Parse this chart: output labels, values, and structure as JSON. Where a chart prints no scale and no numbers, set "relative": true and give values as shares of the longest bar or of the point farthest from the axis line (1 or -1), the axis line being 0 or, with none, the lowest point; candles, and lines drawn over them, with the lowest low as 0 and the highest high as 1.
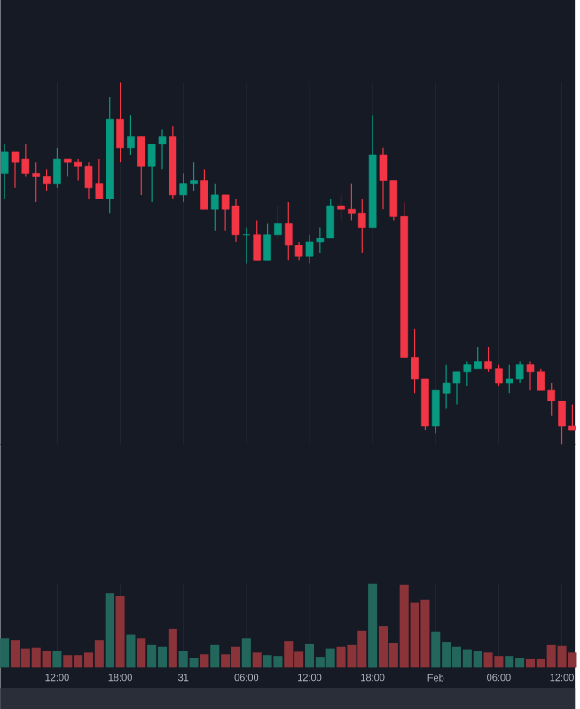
{
  "chart_data": [
    {
      "type": "candlestick",
      "relative": true,
      "grid": "x",
      "categories": [
        null,
        null,
        null,
        null,
        null,
        "12:00",
        null,
        null,
        null,
        null,
        null,
        "18:00",
        null,
        null,
        null,
        null,
        null,
        "31",
        null,
        null,
        null,
        null,
        null,
        "06:00",
        null,
        null,
        null,
        null,
        null,
        "12:00",
        null,
        null,
        null,
        null,
        null,
        "18:00",
        null,
        null,
        null,
        null,
        null,
        "Feb",
        null,
        null,
        null,
        null,
        null,
        "06:00",
        null,
        null,
        null,
        null,
        null,
        "12:00",
        null
      ],
      "ohlc": [
        [
          0.75,
          0.83,
          0.68,
          0.81
        ],
        [
          0.81,
          0.81,
          0.71,
          0.78
        ],
        [
          0.79,
          0.83,
          0.74,
          0.75
        ],
        [
          0.75,
          0.78,
          0.67,
          0.74
        ],
        [
          0.74,
          0.76,
          0.7,
          0.72
        ],
        [
          0.72,
          0.82,
          0.71,
          0.79
        ],
        [
          0.79,
          0.79,
          0.74,
          0.78
        ],
        [
          0.78,
          0.79,
          0.73,
          0.77
        ],
        [
          0.77,
          0.78,
          0.68,
          0.71
        ],
        [
          0.72,
          0.79,
          0.68,
          0.68
        ],
        [
          0.68,
          0.96,
          0.64,
          0.9
        ],
        [
          0.9,
          1.0,
          0.78,
          0.82
        ],
        [
          0.82,
          0.91,
          0.8,
          0.85
        ],
        [
          0.85,
          0.85,
          0.69,
          0.77
        ],
        [
          0.77,
          0.83,
          0.67,
          0.83
        ],
        [
          0.83,
          0.87,
          0.76,
          0.85
        ],
        [
          0.85,
          0.88,
          0.68,
          0.69
        ],
        [
          0.69,
          0.75,
          0.67,
          0.72
        ],
        [
          0.72,
          0.78,
          0.7,
          0.73
        ],
        [
          0.73,
          0.76,
          0.65,
          0.65
        ],
        [
          0.65,
          0.72,
          0.59,
          0.69
        ],
        [
          0.69,
          0.69,
          0.59,
          0.65
        ],
        [
          0.66,
          0.68,
          0.56,
          0.58
        ],
        [
          0.58,
          0.6,
          0.5,
          0.58
        ],
        [
          0.58,
          0.62,
          0.51,
          0.51
        ],
        [
          0.51,
          0.61,
          0.51,
          0.58
        ],
        [
          0.58,
          0.66,
          0.57,
          0.61
        ],
        [
          0.61,
          0.67,
          0.51,
          0.55
        ],
        [
          0.55,
          0.56,
          0.51,
          0.52
        ],
        [
          0.52,
          0.58,
          0.5,
          0.56
        ],
        [
          0.56,
          0.6,
          0.53,
          0.57
        ],
        [
          0.57,
          0.68,
          0.57,
          0.66
        ],
        [
          0.66,
          0.69,
          0.62,
          0.65
        ],
        [
          0.65,
          0.72,
          0.62,
          0.64
        ],
        [
          0.64,
          0.68,
          0.53,
          0.6
        ],
        [
          0.6,
          0.91,
          0.6,
          0.8
        ],
        [
          0.8,
          0.82,
          0.65,
          0.73
        ],
        [
          0.73,
          0.73,
          0.62,
          0.63
        ],
        [
          0.63,
          0.67,
          0.24,
          0.24
        ],
        [
          0.24,
          0.32,
          0.14,
          0.18
        ],
        [
          0.18,
          0.18,
          0.04,
          0.05
        ],
        [
          0.05,
          0.15,
          0.03,
          0.15
        ],
        [
          0.14,
          0.22,
          0.1,
          0.17
        ],
        [
          0.17,
          0.2,
          0.11,
          0.2
        ],
        [
          0.2,
          0.23,
          0.16,
          0.22
        ],
        [
          0.21,
          0.27,
          0.21,
          0.23
        ],
        [
          0.23,
          0.27,
          0.2,
          0.21
        ],
        [
          0.21,
          0.22,
          0.16,
          0.17
        ],
        [
          0.17,
          0.22,
          0.14,
          0.18
        ],
        [
          0.18,
          0.23,
          0.17,
          0.22
        ],
        [
          0.22,
          0.23,
          0.15,
          0.2
        ],
        [
          0.2,
          0.21,
          0.15,
          0.15
        ],
        [
          0.15,
          0.17,
          0.08,
          0.12
        ],
        [
          0.12,
          0.12,
          0.0,
          0.05
        ],
        [
          0.05,
          0.11,
          0.04,
          0.04
        ]
      ],
      "colors": [
        "#089981",
        "#f23645",
        "#f23645",
        "#f23645",
        "#f23645",
        "#089981",
        "#f23645",
        "#f23645",
        "#f23645",
        "#f23645",
        "#089981",
        "#f23645",
        "#089981",
        "#f23645",
        "#089981",
        "#089981",
        "#f23645",
        "#089981",
        "#089981",
        "#f23645",
        "#089981",
        "#f23645",
        "#f23645",
        "#089981",
        "#f23645",
        "#089981",
        "#089981",
        "#f23645",
        "#f23645",
        "#089981",
        "#089981",
        "#089981",
        "#f23645",
        "#f23645",
        "#f23645",
        "#089981",
        "#f23645",
        "#f23645",
        "#f23645",
        "#f23645",
        "#f23645",
        "#089981",
        "#089981",
        "#089981",
        "#089981",
        "#089981",
        "#f23645",
        "#f23645",
        "#089981",
        "#089981",
        "#f23645",
        "#f23645",
        "#f23645",
        "#f23645",
        "#f23645"
      ]
    },
    {
      "type": "bar",
      "relative": true,
      "grid": "x",
      "tick_labels": false,
      "categories": [
        null,
        null,
        null,
        null,
        null,
        null,
        null,
        null,
        null,
        null,
        null,
        null,
        null,
        null,
        null,
        null,
        null,
        null,
        null,
        null,
        null,
        null,
        null,
        null,
        null,
        null,
        null,
        null,
        null,
        null,
        null,
        null,
        null,
        null,
        null,
        null,
        null,
        null,
        null,
        null,
        null,
        null,
        null,
        null,
        null,
        null,
        null,
        null,
        null,
        null,
        null,
        null,
        null,
        null,
        null
      ],
      "values": [
        0.35,
        0.33,
        0.23,
        0.24,
        0.2,
        0.2,
        0.15,
        0.15,
        0.18,
        0.33,
        0.89,
        0.86,
        0.4,
        0.35,
        0.27,
        0.25,
        0.46,
        0.2,
        0.12,
        0.16,
        0.27,
        0.16,
        0.25,
        0.35,
        0.18,
        0.15,
        0.14,
        0.32,
        0.19,
        0.28,
        0.13,
        0.23,
        0.25,
        0.27,
        0.44,
        1,
        0.5,
        0.29,
        0.99,
        0.78,
        0.81,
        0.43,
        0.31,
        0.25,
        0.22,
        0.2,
        0.18,
        0.14,
        0.14,
        0.11,
        0.1,
        0.1,
        0.27,
        0.26,
        0.18
      ],
      "colors": [
        "#22665c",
        "#8a3338",
        "#8a3338",
        "#8a3338",
        "#8a3338",
        "#22665c",
        "#8a3338",
        "#8a3338",
        "#8a3338",
        "#8a3338",
        "#22665c",
        "#8a3338",
        "#22665c",
        "#8a3338",
        "#22665c",
        "#22665c",
        "#8a3338",
        "#22665c",
        "#22665c",
        "#8a3338",
        "#22665c",
        "#8a3338",
        "#8a3338",
        "#22665c",
        "#8a3338",
        "#22665c",
        "#22665c",
        "#8a3338",
        "#8a3338",
        "#22665c",
        "#22665c",
        "#22665c",
        "#8a3338",
        "#8a3338",
        "#8a3338",
        "#22665c",
        "#8a3338",
        "#8a3338",
        "#8a3338",
        "#8a3338",
        "#8a3338",
        "#22665c",
        "#22665c",
        "#22665c",
        "#22665c",
        "#22665c",
        "#8a3338",
        "#8a3338",
        "#22665c",
        "#22665c",
        "#8a3338",
        "#8a3338",
        "#8a3338",
        "#8a3338",
        "#8a3338"
      ]
    }
  ]
}
